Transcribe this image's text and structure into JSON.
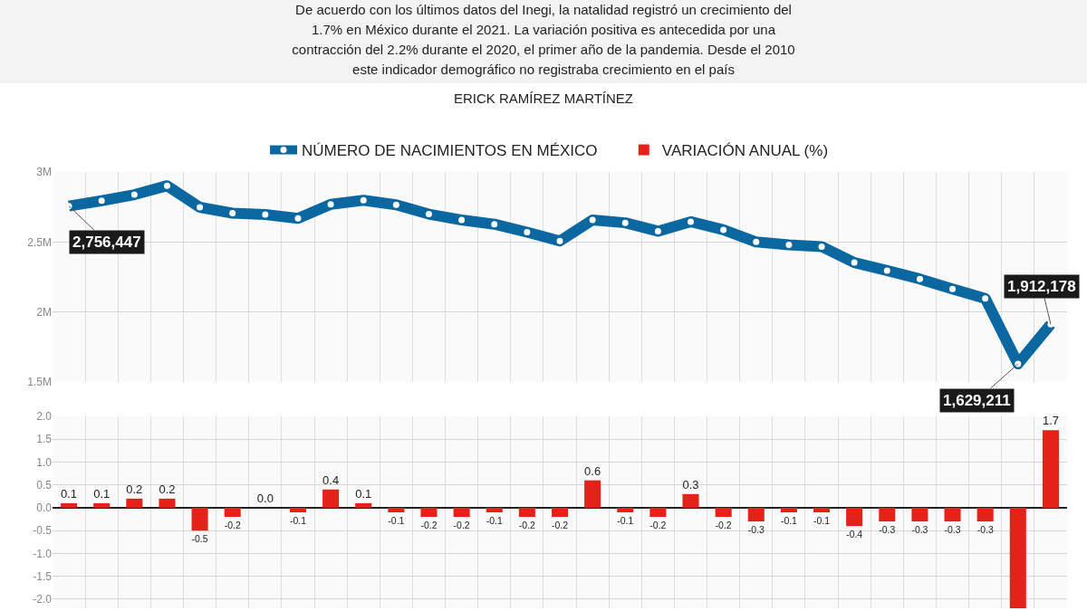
{
  "chart_data": [
    {
      "type": "line",
      "subtitle": "De acuerdo con los últimos datos del Inegi, la natalidad registró un crecimiento del\n1.7% en México durante el 2021. La variación positiva es antecedida por una\ncontracción del 2.2% durante el 2020, el primer año de la pandemia. Desde el 2010\neste indicador demográfico no registraba crecimiento en el país",
      "annotations": [
        "ERICK RAMÍREZ MARTÍNEZ"
      ],
      "categories": [
        null,
        null,
        null,
        null,
        null,
        null,
        null,
        null,
        null,
        null,
        null,
        null,
        null,
        null,
        null,
        null,
        null,
        null,
        null,
        null,
        null,
        null,
        null,
        null,
        null,
        null,
        null,
        null,
        null,
        null,
        null
      ],
      "series": [
        {
          "name": "NÚMERO DE NACIMIENTOS EN MÉXICO",
          "color": "#0b67a0",
          "values": [
            2756447,
            2795000,
            2838000,
            2902000,
            2748000,
            2706000,
            2696000,
            2669000,
            2769000,
            2798000,
            2766000,
            2699000,
            2657000,
            2627000,
            2570000,
            2507000,
            2657000,
            2637000,
            2577000,
            2645000,
            2587000,
            2500000,
            2480000,
            2467000,
            2353000,
            2296000,
            2236000,
            2164000,
            2097000,
            1629211,
            1912178
          ],
          "value_labels": [
            "2,756,447",
            null,
            null,
            null,
            null,
            null,
            null,
            null,
            null,
            null,
            null,
            null,
            null,
            null,
            null,
            null,
            null,
            null,
            null,
            null,
            null,
            null,
            null,
            null,
            null,
            null,
            null,
            null,
            null,
            "1,629,211",
            "1,912,178"
          ]
        }
      ],
      "ylim": [
        1500000,
        3000000
      ],
      "yticks": [
        {
          "value": 1500000,
          "label": "1.5M"
        },
        {
          "value": 2000000,
          "label": "2M"
        },
        {
          "value": 2500000,
          "label": "2.5M"
        },
        {
          "value": 3000000,
          "label": "3M"
        }
      ],
      "grid": true,
      "legend": "top",
      "tick_labels": "y",
      "marker": "circle",
      "line_style": "solid"
    },
    {
      "type": "bar",
      "categories": [
        null,
        null,
        null,
        null,
        null,
        null,
        null,
        null,
        null,
        null,
        null,
        null,
        null,
        null,
        null,
        null,
        null,
        null,
        null,
        null,
        null,
        null,
        null,
        null,
        null,
        null,
        null,
        null,
        null,
        null,
        null
      ],
      "series": [
        {
          "name": "VARIACIÓN ANUAL (%)",
          "color": "#e32219",
          "values": [
            0.1,
            0.1,
            0.2,
            0.2,
            -0.5,
            -0.2,
            0.0,
            -0.1,
            0.4,
            0.1,
            -0.1,
            -0.2,
            -0.2,
            -0.1,
            -0.2,
            -0.2,
            0.6,
            -0.1,
            -0.2,
            0.3,
            -0.2,
            -0.3,
            -0.1,
            -0.1,
            -0.4,
            -0.3,
            -0.3,
            -0.3,
            -0.3,
            -2.2,
            1.7
          ],
          "value_labels": [
            "0.1",
            "0.1",
            "0.2",
            "0.2",
            "-0.5",
            "-0.2",
            "0.0",
            "-0.1",
            "0.4",
            "0.1",
            "-0.1",
            "-0.2",
            "-0.2",
            "-0.1",
            "-0.2",
            "-0.2",
            "0.6",
            "-0.1",
            "-0.2",
            "0.3",
            "-0.2",
            "-0.3",
            "-0.1",
            "-0.1",
            "-0.4",
            "-0.3",
            "-0.3",
            "-0.3",
            "-0.3",
            null,
            "1.7"
          ]
        }
      ],
      "ylim": [
        -2.2,
        2.0
      ],
      "yticks": [
        {
          "value": -2,
          "label": "-2.0"
        },
        {
          "value": -1.5,
          "label": "-1.5"
        },
        {
          "value": -1,
          "label": "-1.0"
        },
        {
          "value": -0.5,
          "label": "-0.5"
        },
        {
          "value": 0,
          "label": "0.0"
        },
        {
          "value": 0.5,
          "label": "0.5"
        },
        {
          "value": 1,
          "label": "1.0"
        },
        {
          "value": 1.5,
          "label": "1.5"
        },
        {
          "value": 2,
          "label": "2.0"
        }
      ],
      "grid": true,
      "legend": "top",
      "tick_labels": "y"
    }
  ]
}
